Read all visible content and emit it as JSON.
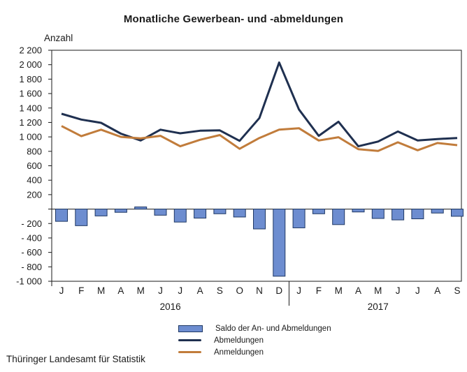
{
  "title": "Monatliche Gewerbean- und -abmeldungen",
  "footer": "Thüringer Landesamt für Statistik",
  "chart_data": {
    "type": "combo",
    "y_axis_label": "Anzahl",
    "ylim": [
      -1000,
      2200
    ],
    "y_tick_step": 200,
    "y_tick_labels": [
      "2 200",
      "2 000",
      "1 800",
      "1 600",
      "1 400",
      "1 200",
      "1 000",
      "800",
      "600",
      "400",
      "200",
      "",
      "- 200",
      "- 400",
      "- 600",
      "- 800",
      "-1 000"
    ],
    "categories": [
      "J",
      "F",
      "M",
      "A",
      "M",
      "J",
      "J",
      "A",
      "S",
      "O",
      "N",
      "D",
      "J",
      "F",
      "M",
      "A",
      "M",
      "J",
      "J",
      "A",
      "S"
    ],
    "year_groups": [
      {
        "label": "2016",
        "start": 0,
        "end": 11
      },
      {
        "label": "2017",
        "start": 12,
        "end": 20
      }
    ],
    "grid": false,
    "legend_position": "bottom",
    "axis_color": "#1a1a1a",
    "series": [
      {
        "name": "Saldo der An- und Abmeldungen",
        "type": "bar",
        "color": "#6d8dd0",
        "border_color": "#1f3864",
        "values": [
          -170,
          -230,
          -95,
          -45,
          30,
          -85,
          -180,
          -125,
          -65,
          -110,
          -275,
          -930,
          -260,
          -65,
          -215,
          -40,
          -130,
          -150,
          -135,
          -55,
          -100
        ]
      },
      {
        "name": "Abmeldungen",
        "type": "line",
        "color": "#1f3050",
        "values": [
          1320,
          1240,
          1195,
          1045,
          950,
          1100,
          1050,
          1085,
          1090,
          945,
          1260,
          2030,
          1380,
          1015,
          1210,
          870,
          935,
          1075,
          950,
          970,
          985
        ]
      },
      {
        "name": "Anmeldungen",
        "type": "line",
        "color": "#c17c3b",
        "values": [
          1150,
          1010,
          1100,
          1000,
          980,
          1015,
          870,
          960,
          1025,
          835,
          985,
          1100,
          1120,
          950,
          995,
          830,
          805,
          925,
          815,
          915,
          885
        ]
      }
    ]
  }
}
